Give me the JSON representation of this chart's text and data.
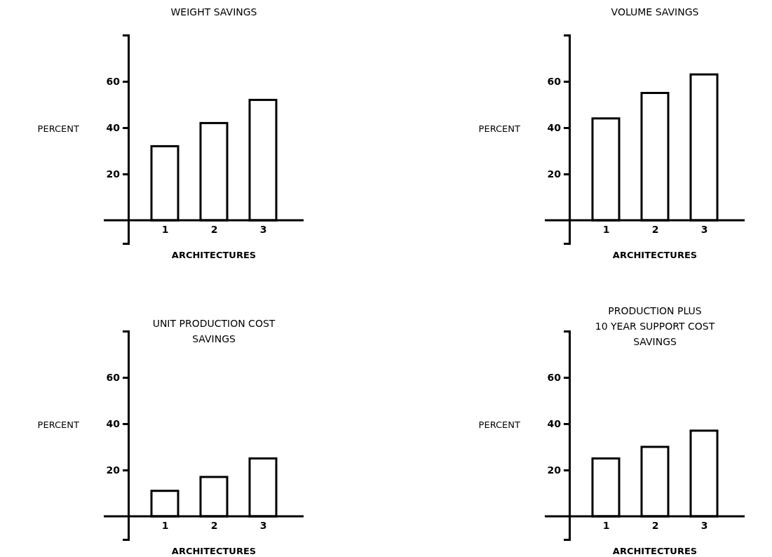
{
  "chart_data": [
    {
      "type": "bar",
      "title": "WEIGHT SAVINGS",
      "xlabel": "ARCHITECTURES",
      "ylabel": "PERCENT",
      "categories": [
        "1",
        "2",
        "3"
      ],
      "values": [
        32,
        42,
        52
      ],
      "color": "#000000",
      "ylim": [
        -10,
        80
      ],
      "yticks": [
        20,
        40,
        60
      ],
      "grid": false
    },
    {
      "type": "bar",
      "title": "VOLUME SAVINGS",
      "xlabel": "ARCHITECTURES",
      "ylabel": "PERCENT",
      "categories": [
        "1",
        "2",
        "3"
      ],
      "values": [
        44,
        55,
        63
      ],
      "color": "#000000",
      "ylim": [
        -10,
        80
      ],
      "yticks": [
        20,
        40,
        60
      ],
      "grid": false
    },
    {
      "type": "bar",
      "title": "UNIT PRODUCTION COST\nSAVINGS",
      "xlabel": "ARCHITECTURES",
      "ylabel": "PERCENT",
      "categories": [
        "1",
        "2",
        "3"
      ],
      "values": [
        11,
        17,
        25
      ],
      "color": "#000000",
      "ylim": [
        -10,
        80
      ],
      "yticks": [
        20,
        40,
        60
      ],
      "grid": false
    },
    {
      "type": "bar",
      "title": "PRODUCTION PLUS\n10 YEAR SUPPORT COST\nSAVINGS",
      "xlabel": "ARCHITECTURES",
      "ylabel": "PERCENT",
      "categories": [
        "1",
        "2",
        "3"
      ],
      "values": [
        25,
        30,
        37
      ],
      "color": "#000000",
      "ylim": [
        -10,
        80
      ],
      "yticks": [
        20,
        40,
        60
      ],
      "grid": false
    }
  ]
}
